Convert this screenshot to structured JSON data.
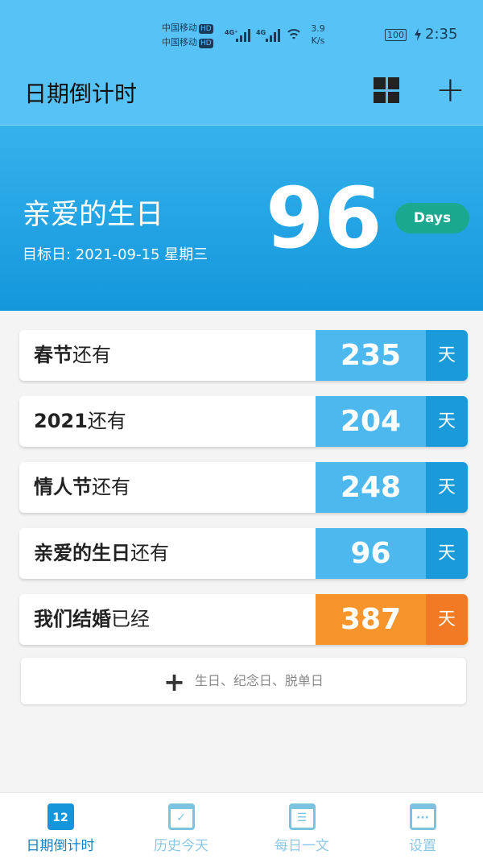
{
  "status": {
    "carrier1": "中国移动",
    "carrier2": "中国移动",
    "hd": "HD",
    "net1": "4G⁺",
    "net2": "4G",
    "speed_value": "3.9",
    "speed_unit": "K/s",
    "battery": "100",
    "time": "2:35"
  },
  "header": {
    "title": "日期倒计时",
    "grid_icon": "grid-icon",
    "add_icon": "plus-icon"
  },
  "hero": {
    "name": "亲爱的生日",
    "date": "目标日: 2021-09-15 星期三",
    "days": "96",
    "days_label": "Days"
  },
  "events": [
    {
      "bold": "春节",
      "rest": "还有",
      "days": "235",
      "unit": "天",
      "color": "#4cb8ee",
      "unit_color": "#1a9ad8"
    },
    {
      "bold": "2021",
      "rest": "还有",
      "days": "204",
      "unit": "天",
      "color": "#4cb8ee",
      "unit_color": "#1a9ad8"
    },
    {
      "bold": "情人节",
      "rest": "还有",
      "days": "248",
      "unit": "天",
      "color": "#4cb8ee",
      "unit_color": "#1a9ad8"
    },
    {
      "bold": "亲爱的生日",
      "rest": "还有",
      "days": "96",
      "unit": "天",
      "color": "#4cb8ee",
      "unit_color": "#1a9ad8"
    },
    {
      "bold": "我们结婚",
      "rest": "已经",
      "days": "387",
      "unit": "天",
      "color": "#f7952c",
      "unit_color": "#f27a24"
    }
  ],
  "add": {
    "icon": "plus-icon",
    "label": "生日、纪念日、脱单日"
  },
  "tabs": [
    {
      "label": "日期倒计时",
      "icon": "calendar-12",
      "glyph": "12"
    },
    {
      "label": "历史今天",
      "icon": "calendar-check",
      "glyph": "✓"
    },
    {
      "label": "每日一文",
      "icon": "calendar-lines",
      "glyph": "☰"
    },
    {
      "label": "设置",
      "icon": "calendar-dots",
      "glyph": "···"
    }
  ]
}
